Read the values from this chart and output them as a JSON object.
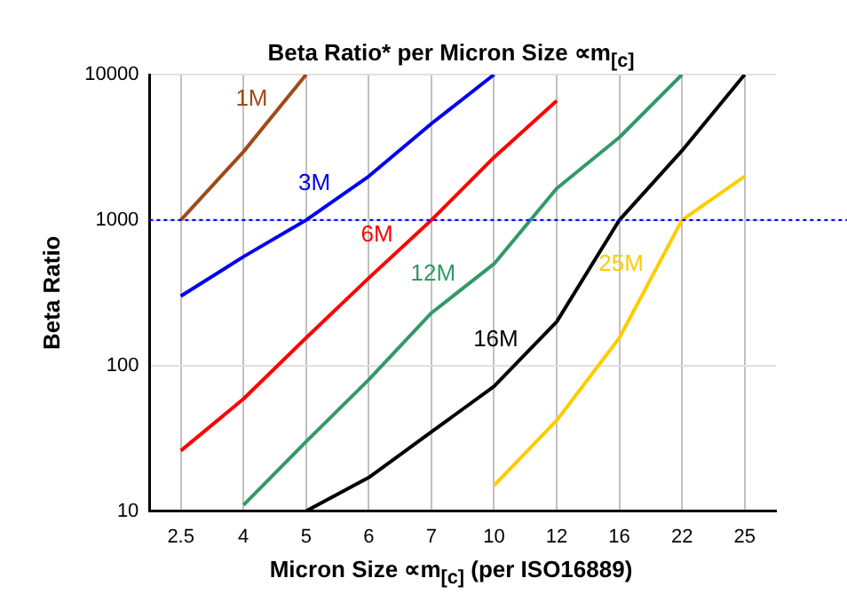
{
  "chart_data": {
    "type": "line",
    "title": "Beta Ratio* per Micron Size ∝m$_{[c]}$",
    "xlabel": "Micron Size ∝m$_{[c]}$ (per ISO16889)",
    "ylabel": "Beta Ratio",
    "categories": [
      "2.5",
      "4",
      "5",
      "6",
      "7",
      "10",
      "12",
      "16",
      "22",
      "25"
    ],
    "series": [
      {
        "name": "1M",
        "color": "#a04a1a",
        "values": [
          1000,
          2950,
          10000,
          null,
          null,
          null,
          null,
          null,
          null,
          null
        ]
      },
      {
        "name": "3M",
        "color": "#0000ee",
        "values": [
          300,
          560,
          1000,
          2000,
          4600,
          10000,
          null,
          null,
          null,
          null
        ]
      },
      {
        "name": "6M",
        "color": "#ff0000",
        "values": [
          26,
          59,
          155,
          400,
          1000,
          2700,
          6600,
          null,
          null,
          null
        ]
      },
      {
        "name": "12M",
        "color": "#339966",
        "values": [
          null,
          11,
          30,
          80,
          230,
          500,
          1650,
          3700,
          10000,
          null
        ]
      },
      {
        "name": "16M",
        "color": "#000000",
        "values": [
          null,
          null,
          10,
          17,
          35,
          72,
          200,
          1000,
          3000,
          10000
        ]
      },
      {
        "name": "25M",
        "color": "#ffcc00",
        "values": [
          null,
          null,
          null,
          null,
          null,
          15,
          42,
          155,
          1000,
          2000
        ]
      }
    ],
    "log": true,
    "ylim": [
      10,
      10000
    ],
    "yticks": [
      10,
      100,
      1000,
      10000
    ],
    "grid": true,
    "ref_lines": [
      {
        "axis": "y",
        "value": 1000,
        "color": "#0000ff",
        "line_style": "dotted"
      }
    ]
  }
}
